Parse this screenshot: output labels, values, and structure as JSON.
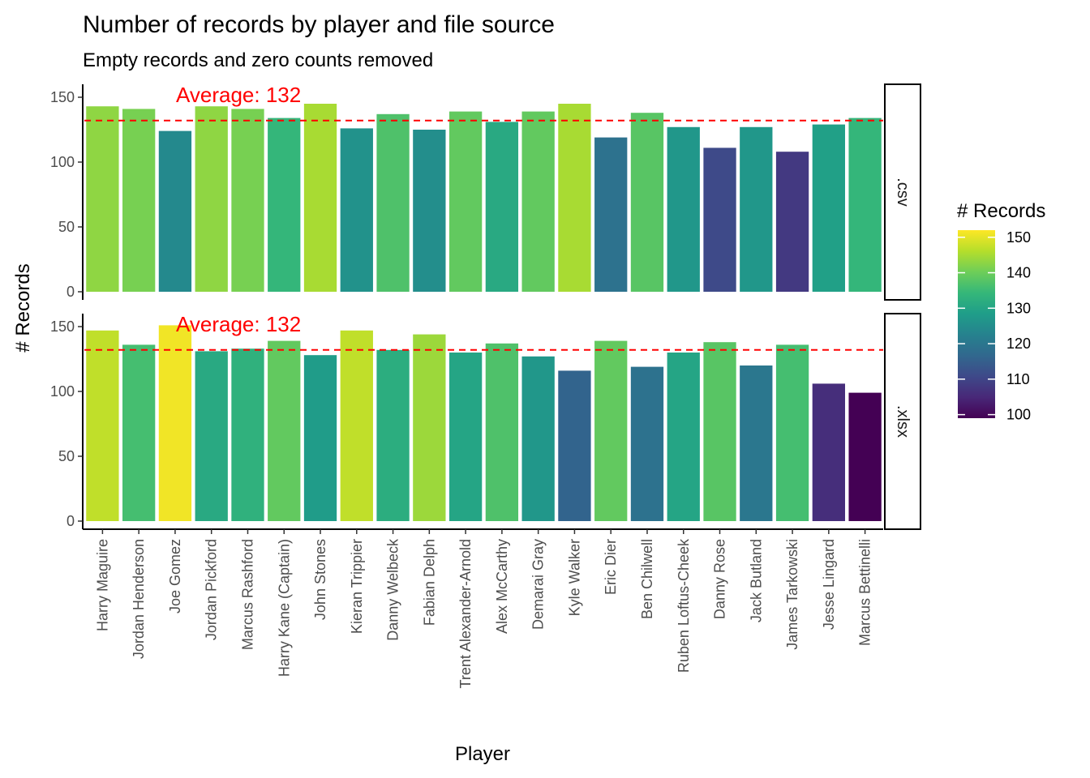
{
  "chart_data": {
    "type": "bar",
    "title": "Number of records by player and file source",
    "subtitle": "Empty records and zero counts removed",
    "xlabel": "Player",
    "ylabel": "# Records",
    "ylim": [
      0,
      160
    ],
    "y_ticks": [
      0,
      50,
      100,
      150
    ],
    "grid": false,
    "categories": [
      "Harry Maguire",
      "Jordan Henderson",
      "Joe Gomez",
      "Jordan Pickford",
      "Marcus Rashford",
      "Harry Kane (Captain)",
      "John Stones",
      "Kieran Trippier",
      "Danny Welbeck",
      "Fabian Delph",
      "Trent Alexander-Arnold",
      "Alex McCarthy",
      "Demarai Gray",
      "Kyle Walker",
      "Eric Dier",
      "Ben Chilwell",
      "Ruben Loftus-Cheek",
      "Danny Rose",
      "Jack Butland",
      "James Tarkowski",
      "Jesse Lingard",
      "Marcus Bettinelli"
    ],
    "facets": [
      {
        "label": ".csv",
        "average": 132,
        "average_label": "Average: 132",
        "values": [
          143,
          141,
          124,
          143,
          141,
          134,
          145,
          126,
          137,
          125,
          139,
          131,
          139,
          145,
          119,
          138,
          127,
          111,
          127,
          108,
          129,
          134
        ]
      },
      {
        "label": ".xlsx",
        "average": 132,
        "average_label": "Average: 132",
        "values": [
          147,
          136,
          151,
          131,
          133,
          139,
          128,
          147,
          132,
          144,
          130,
          137,
          127,
          116,
          139,
          119,
          130,
          138,
          120,
          136,
          106,
          99
        ]
      }
    ],
    "average_line_color": "#ff0000",
    "legend": {
      "title": "# Records",
      "placement": "right",
      "ticks": [
        100,
        110,
        120,
        130,
        140,
        150
      ],
      "range": [
        99,
        152
      ],
      "colormap": "viridis"
    }
  }
}
